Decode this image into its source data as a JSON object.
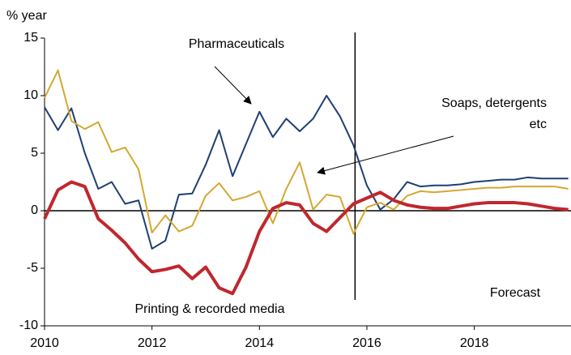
{
  "chart_data": {
    "type": "line",
    "y_label": "% year",
    "x": [
      2010,
      2010.25,
      2010.5,
      2010.75,
      2011,
      2011.25,
      2011.5,
      2011.75,
      2012,
      2012.25,
      2012.5,
      2012.75,
      2013,
      2013.25,
      2013.5,
      2013.75,
      2014,
      2014.25,
      2014.5,
      2014.75,
      2015,
      2015.25,
      2015.5,
      2015.75,
      2016,
      2016.25,
      2016.5,
      2016.75,
      2017,
      2017.25,
      2017.5,
      2017.75,
      2018,
      2018.25,
      2018.5,
      2018.75,
      2019,
      2019.25,
      2019.5,
      2019.75
    ],
    "series": [
      {
        "name": "Pharmaceuticals",
        "color": "#1f3f73",
        "width": 2,
        "values": [
          9,
          7,
          8.9,
          5,
          1.9,
          2.5,
          0.6,
          0.9,
          -3.3,
          -2.6,
          1.4,
          1.5,
          4,
          7,
          3,
          5.8,
          8.6,
          6.4,
          8,
          6.9,
          8,
          10,
          8.2,
          5.7,
          2.2,
          0.1,
          1,
          2.5,
          2.1,
          2.2,
          2.2,
          2.3,
          2.5,
          2.6,
          2.7,
          2.7,
          2.9,
          2.8,
          2.8,
          2.8
        ]
      },
      {
        "name": "Soaps, detergents etc",
        "color": "#d4a830",
        "width": 2,
        "values": [
          9.8,
          12.2,
          7.8,
          7.1,
          7.7,
          5.1,
          5.5,
          3.6,
          -1.9,
          -0.4,
          -1.8,
          -1.3,
          1.3,
          2.4,
          0.9,
          1.2,
          1.7,
          -1.1,
          1.9,
          4.2,
          0.1,
          1.4,
          1.2,
          -2,
          0.3,
          0.7,
          0.1,
          1.3,
          1.7,
          1.6,
          1.7,
          1.8,
          1.9,
          2,
          2,
          2.1,
          2.1,
          2.1,
          2.1,
          1.9
        ]
      },
      {
        "name": "Printing & recorded media",
        "color": "#c0272d",
        "width": 4,
        "values": [
          -0.7,
          1.8,
          2.5,
          2.1,
          -0.7,
          -1.7,
          -2.8,
          -4.2,
          -5.3,
          -5.1,
          -4.8,
          -5.9,
          -4.9,
          -6.7,
          -7.2,
          -4.9,
          -1.8,
          0.2,
          0.7,
          0.5,
          -1.1,
          -1.8,
          -0.6,
          0.6,
          1.1,
          1.6,
          0.9,
          0.5,
          0.3,
          0.2,
          0.2,
          0.4,
          0.6,
          0.7,
          0.7,
          0.7,
          0.6,
          0.4,
          0.2,
          0.1
        ]
      }
    ],
    "annotation": "Forecast",
    "forecast_start": 2015.78,
    "xlim": [
      2010,
      2019.8
    ],
    "xticks": [
      2010,
      2012,
      2014,
      2016,
      2018
    ],
    "ylim": [
      -10,
      15
    ],
    "yticks": [
      -10,
      -5,
      0,
      5,
      10,
      15
    ]
  }
}
